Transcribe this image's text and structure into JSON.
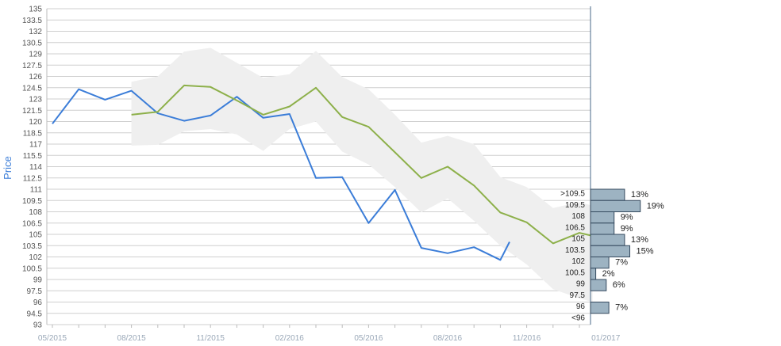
{
  "chart_data": {
    "type": "line",
    "ylabel": "Price",
    "ylim": [
      93,
      135
    ],
    "yticks": [
      "135",
      "133.5",
      "132",
      "130.5",
      "129",
      "127.5",
      "126",
      "124.5",
      "123",
      "121.5",
      "120",
      "118.5",
      "117",
      "115.5",
      "114",
      "112.5",
      "111",
      "109.5",
      "108",
      "106.5",
      "105",
      "103.5",
      "102",
      "100.5",
      "99",
      "97.5",
      "96",
      "94.5",
      "93"
    ],
    "xticks": [
      "05/2015",
      "08/2015",
      "11/2015",
      "02/2016",
      "05/2016",
      "08/2016",
      "11/2016",
      "01/2017"
    ],
    "xlim": [
      0,
      20.5
    ],
    "grid": true,
    "colors": {
      "actual": "#3b7dd8",
      "forecast": "#8db04a",
      "band": "#efefef",
      "bars": "#9db3c2",
      "bar_border": "#34495e"
    },
    "series": [
      {
        "values": [
          [
            0,
            119.7
          ],
          [
            1,
            124.3
          ],
          [
            2,
            122.9
          ],
          [
            3,
            124.1
          ],
          [
            4,
            121.1
          ],
          [
            5,
            120.1
          ],
          [
            6,
            120.8
          ],
          [
            7,
            123.3
          ],
          [
            8,
            120.5
          ],
          [
            9,
            121.0
          ],
          [
            10,
            112.5
          ],
          [
            11,
            112.6
          ],
          [
            12,
            106.5
          ],
          [
            13,
            110.9
          ],
          [
            14,
            103.2
          ],
          [
            15,
            102.5
          ],
          [
            16,
            103.3
          ],
          [
            17,
            101.6
          ],
          [
            17.35,
            104.0
          ]
        ]
      },
      {
        "values": [
          [
            3,
            120.9
          ],
          [
            4,
            121.3
          ],
          [
            5,
            124.8
          ],
          [
            6,
            124.6
          ],
          [
            7,
            122.8
          ],
          [
            8,
            120.9
          ],
          [
            9,
            122.0
          ],
          [
            10,
            124.5
          ],
          [
            11,
            120.6
          ],
          [
            12,
            119.3
          ],
          [
            13,
            115.9
          ],
          [
            14,
            112.5
          ],
          [
            15,
            114.0
          ],
          [
            16,
            111.5
          ],
          [
            17,
            107.9
          ],
          [
            18,
            106.6
          ],
          [
            19,
            103.8
          ],
          [
            20,
            105.2
          ],
          [
            20.5,
            104.8
          ]
        ]
      }
    ],
    "band": {
      "upper": [
        [
          3,
          125.3
        ],
        [
          4,
          126.0
        ],
        [
          5,
          129.3
        ],
        [
          6,
          129.8
        ],
        [
          7,
          127.8
        ],
        [
          8,
          125.8
        ],
        [
          9,
          126.3
        ],
        [
          10,
          129.4
        ],
        [
          11,
          125.9
        ],
        [
          12,
          124.3
        ],
        [
          13,
          120.9
        ],
        [
          14,
          117.2
        ],
        [
          15,
          118.1
        ],
        [
          16,
          117.0
        ],
        [
          17,
          112.6
        ],
        [
          18,
          111.3
        ],
        [
          19,
          108.5
        ],
        [
          20,
          109.3
        ],
        [
          20.5,
          108.8
        ]
      ],
      "lower": [
        [
          20.5,
          96.0
        ],
        [
          20,
          96.5
        ],
        [
          19,
          97.7
        ],
        [
          18,
          101.0
        ],
        [
          17,
          103.5
        ],
        [
          16,
          106.8
        ],
        [
          15,
          109.8
        ],
        [
          14,
          107.9
        ],
        [
          13,
          111.3
        ],
        [
          12,
          114.3
        ],
        [
          11,
          116.0
        ],
        [
          10,
          120.0
        ],
        [
          9,
          119.0
        ],
        [
          8,
          116.1
        ],
        [
          7,
          118.3
        ],
        [
          6,
          119.0
        ],
        [
          5,
          118.7
        ],
        [
          4,
          116.9
        ],
        [
          3,
          116.8
        ]
      ]
    },
    "distribution": {
      "bins": [
        {
          "label": ">109.5",
          "top": 111,
          "bottom": 109.5,
          "pct": 13,
          "pct_label": "13%"
        },
        {
          "label": "109.5",
          "top": 109.5,
          "bottom": 108,
          "pct": 19,
          "pct_label": "19%"
        },
        {
          "label": "108",
          "top": 108,
          "bottom": 106.5,
          "pct": 9,
          "pct_label": "9%"
        },
        {
          "label": "106.5",
          "top": 106.5,
          "bottom": 105,
          "pct": 9,
          "pct_label": "9%"
        },
        {
          "label": "105",
          "top": 105,
          "bottom": 103.5,
          "pct": 13,
          "pct_label": "13%"
        },
        {
          "label": "103.5",
          "top": 103.5,
          "bottom": 102,
          "pct": 15,
          "pct_label": "15%"
        },
        {
          "label": "102",
          "top": 102,
          "bottom": 100.5,
          "pct": 7,
          "pct_label": "7%"
        },
        {
          "label": "100.5",
          "top": 100.5,
          "bottom": 99,
          "pct": 2,
          "pct_label": "2%"
        },
        {
          "label": "99",
          "top": 99,
          "bottom": 97.5,
          "pct": 6,
          "pct_label": "6%"
        },
        {
          "label": "97.5",
          "top": 97.5,
          "bottom": 96,
          "pct": 0,
          "pct_label": ""
        },
        {
          "label": "96",
          "top": 96,
          "bottom": 94.5,
          "pct": 7,
          "pct_label": "7%"
        },
        {
          "label": "<96",
          "top": 94.5,
          "bottom": 93,
          "pct": 0,
          "pct_label": ""
        }
      ]
    }
  }
}
